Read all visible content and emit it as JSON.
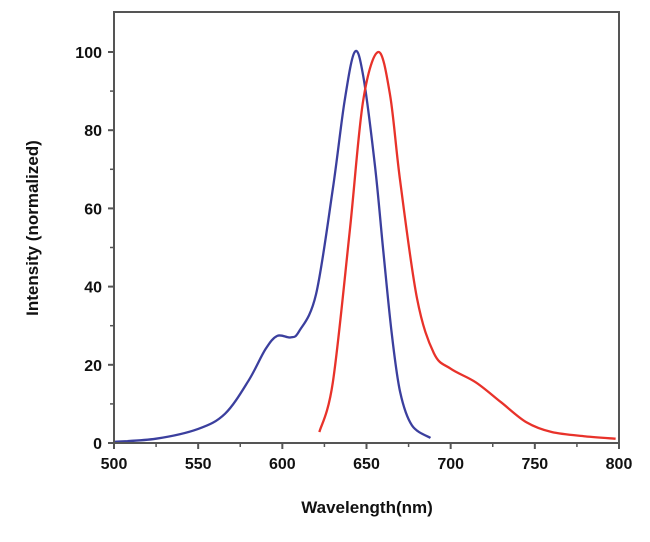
{
  "chart_data": {
    "type": "line",
    "title": "",
    "xlabel": "Wavelength(nm)",
    "ylabel": "Intensity (normalized)",
    "xlim": [
      500,
      800
    ],
    "ylim": [
      0,
      110
    ],
    "xticks": [
      500,
      550,
      600,
      650,
      700,
      750,
      800
    ],
    "yticks": [
      0,
      20,
      40,
      60,
      80,
      100
    ],
    "grid": false,
    "legend": "none",
    "series": [
      {
        "color": "#3b3f9e",
        "x": [
          500,
          525,
          550,
          566,
          580,
          590,
          597,
          605,
          610,
          620,
          630,
          637,
          643,
          648,
          655,
          660,
          665,
          670,
          677,
          688
        ],
        "y": [
          0.3,
          1.1,
          3.6,
          7.5,
          16,
          24,
          27.4,
          27,
          28.6,
          38,
          65,
          87.5,
          100,
          94,
          71,
          49,
          28,
          13,
          4.5,
          1.3
        ]
      },
      {
        "color": "#e8322a",
        "x": [
          622,
          630,
          640,
          648,
          657,
          664,
          670,
          680,
          690,
          700,
          715,
          730,
          745,
          760,
          780,
          798
        ],
        "y": [
          2.8,
          15.5,
          54,
          87.5,
          100,
          89,
          67,
          37,
          23,
          19,
          15.5,
          10.4,
          5.3,
          2.8,
          1.7,
          1.1
        ]
      }
    ]
  }
}
